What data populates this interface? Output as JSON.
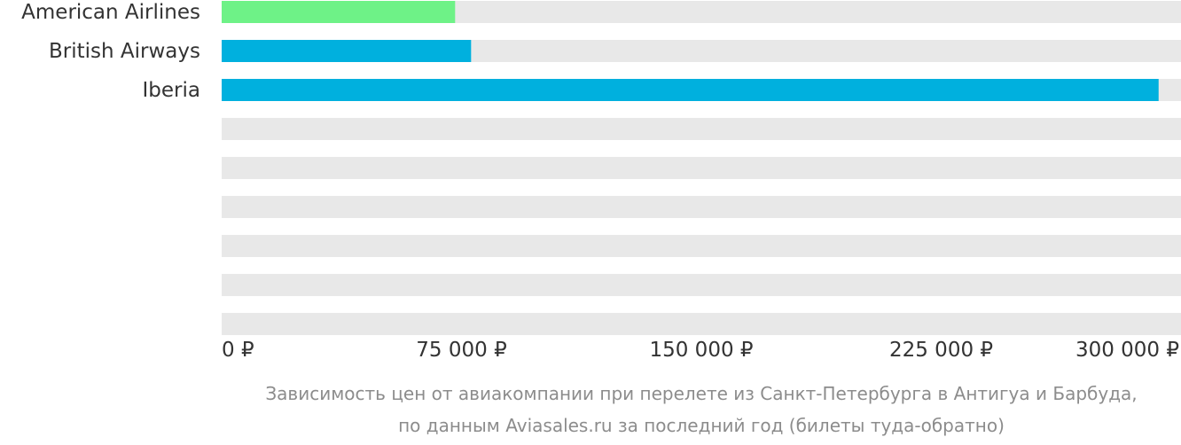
{
  "chart_data": {
    "type": "bar",
    "orientation": "horizontal",
    "categories": [
      "American Airlines",
      "British Airways",
      "Iberia",
      "",
      "",
      "",
      "",
      "",
      ""
    ],
    "values": [
      73000,
      78000,
      293000,
      null,
      null,
      null,
      null,
      null,
      null
    ],
    "bar_colors": [
      "#6ef287",
      "#00b0de",
      "#00b0de"
    ],
    "track_color": "#e8e8e8",
    "xlim": [
      0,
      300000
    ],
    "xticks": [
      0,
      75000,
      150000,
      225000,
      300000
    ],
    "xtick_labels": [
      "0 ₽",
      "75 000 ₽",
      "150 000 ₽",
      "225 000 ₽",
      "300 000 ₽"
    ],
    "grid": false,
    "legend": "none"
  },
  "caption": {
    "line1": "Зависимость цен от авиакомпании при перелете из Санкт-Петербурга в Антигуа и Барбуда,",
    "line2": "по данным Aviasales.ru за последний год (билеты туда-обратно)"
  }
}
